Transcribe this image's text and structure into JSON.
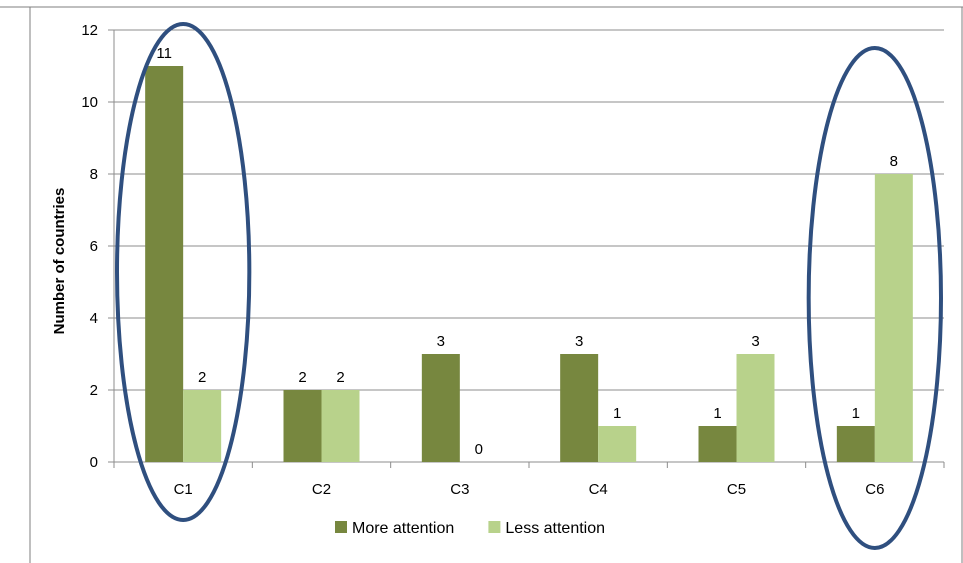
{
  "chart_data": {
    "type": "bar",
    "categories": [
      "C1",
      "C2",
      "C3",
      "C4",
      "C5",
      "C6"
    ],
    "series": [
      {
        "name": "More attention",
        "values": [
          11,
          2,
          3,
          3,
          1,
          1
        ],
        "color": "#77873f"
      },
      {
        "name": "Less attention",
        "values": [
          2,
          2,
          0,
          1,
          3,
          8
        ],
        "color": "#b8d28b"
      }
    ],
    "ylabel": "Number of countries",
    "xlabel": "",
    "ylim": [
      0,
      12
    ],
    "yticks": [
      0,
      2,
      4,
      6,
      8,
      10,
      12
    ],
    "grid": true,
    "legend": "bottom",
    "highlighted_categories": [
      "C1",
      "C6"
    ],
    "highlight_color": "#2f4f7f"
  }
}
